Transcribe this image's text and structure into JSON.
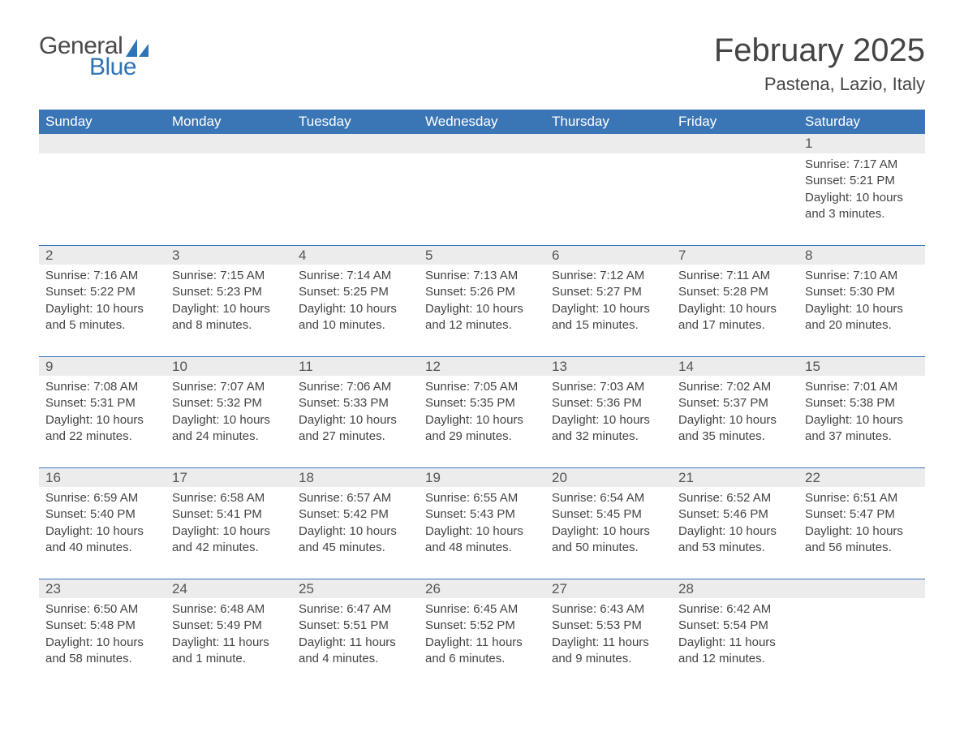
{
  "logo": {
    "text_general": "General",
    "text_blue": "Blue",
    "shape_color": "#2f74b5"
  },
  "title": "February 2025",
  "location": "Pastena, Lazio, Italy",
  "colors": {
    "header_bg": "#3a76b5",
    "header_text": "#ffffff",
    "daynum_bg": "#ececec",
    "daynum_border": "#3a76b5",
    "body_text": "#444444",
    "page_bg": "#ffffff"
  },
  "fonts": {
    "title_size_pt": 30,
    "location_size_pt": 17,
    "dayhead_size_pt": 13,
    "body_size_pt": 11
  },
  "day_headers": [
    "Sunday",
    "Monday",
    "Tuesday",
    "Wednesday",
    "Thursday",
    "Friday",
    "Saturday"
  ],
  "weeks": [
    [
      {
        "n": ""
      },
      {
        "n": ""
      },
      {
        "n": ""
      },
      {
        "n": ""
      },
      {
        "n": ""
      },
      {
        "n": ""
      },
      {
        "n": "1",
        "sr": "Sunrise: 7:17 AM",
        "ss": "Sunset: 5:21 PM",
        "dl": "Daylight: 10 hours and 3 minutes."
      }
    ],
    [
      {
        "n": "2",
        "sr": "Sunrise: 7:16 AM",
        "ss": "Sunset: 5:22 PM",
        "dl": "Daylight: 10 hours and 5 minutes."
      },
      {
        "n": "3",
        "sr": "Sunrise: 7:15 AM",
        "ss": "Sunset: 5:23 PM",
        "dl": "Daylight: 10 hours and 8 minutes."
      },
      {
        "n": "4",
        "sr": "Sunrise: 7:14 AM",
        "ss": "Sunset: 5:25 PM",
        "dl": "Daylight: 10 hours and 10 minutes."
      },
      {
        "n": "5",
        "sr": "Sunrise: 7:13 AM",
        "ss": "Sunset: 5:26 PM",
        "dl": "Daylight: 10 hours and 12 minutes."
      },
      {
        "n": "6",
        "sr": "Sunrise: 7:12 AM",
        "ss": "Sunset: 5:27 PM",
        "dl": "Daylight: 10 hours and 15 minutes."
      },
      {
        "n": "7",
        "sr": "Sunrise: 7:11 AM",
        "ss": "Sunset: 5:28 PM",
        "dl": "Daylight: 10 hours and 17 minutes."
      },
      {
        "n": "8",
        "sr": "Sunrise: 7:10 AM",
        "ss": "Sunset: 5:30 PM",
        "dl": "Daylight: 10 hours and 20 minutes."
      }
    ],
    [
      {
        "n": "9",
        "sr": "Sunrise: 7:08 AM",
        "ss": "Sunset: 5:31 PM",
        "dl": "Daylight: 10 hours and 22 minutes."
      },
      {
        "n": "10",
        "sr": "Sunrise: 7:07 AM",
        "ss": "Sunset: 5:32 PM",
        "dl": "Daylight: 10 hours and 24 minutes."
      },
      {
        "n": "11",
        "sr": "Sunrise: 7:06 AM",
        "ss": "Sunset: 5:33 PM",
        "dl": "Daylight: 10 hours and 27 minutes."
      },
      {
        "n": "12",
        "sr": "Sunrise: 7:05 AM",
        "ss": "Sunset: 5:35 PM",
        "dl": "Daylight: 10 hours and 29 minutes."
      },
      {
        "n": "13",
        "sr": "Sunrise: 7:03 AM",
        "ss": "Sunset: 5:36 PM",
        "dl": "Daylight: 10 hours and 32 minutes."
      },
      {
        "n": "14",
        "sr": "Sunrise: 7:02 AM",
        "ss": "Sunset: 5:37 PM",
        "dl": "Daylight: 10 hours and 35 minutes."
      },
      {
        "n": "15",
        "sr": "Sunrise: 7:01 AM",
        "ss": "Sunset: 5:38 PM",
        "dl": "Daylight: 10 hours and 37 minutes."
      }
    ],
    [
      {
        "n": "16",
        "sr": "Sunrise: 6:59 AM",
        "ss": "Sunset: 5:40 PM",
        "dl": "Daylight: 10 hours and 40 minutes."
      },
      {
        "n": "17",
        "sr": "Sunrise: 6:58 AM",
        "ss": "Sunset: 5:41 PM",
        "dl": "Daylight: 10 hours and 42 minutes."
      },
      {
        "n": "18",
        "sr": "Sunrise: 6:57 AM",
        "ss": "Sunset: 5:42 PM",
        "dl": "Daylight: 10 hours and 45 minutes."
      },
      {
        "n": "19",
        "sr": "Sunrise: 6:55 AM",
        "ss": "Sunset: 5:43 PM",
        "dl": "Daylight: 10 hours and 48 minutes."
      },
      {
        "n": "20",
        "sr": "Sunrise: 6:54 AM",
        "ss": "Sunset: 5:45 PM",
        "dl": "Daylight: 10 hours and 50 minutes."
      },
      {
        "n": "21",
        "sr": "Sunrise: 6:52 AM",
        "ss": "Sunset: 5:46 PM",
        "dl": "Daylight: 10 hours and 53 minutes."
      },
      {
        "n": "22",
        "sr": "Sunrise: 6:51 AM",
        "ss": "Sunset: 5:47 PM",
        "dl": "Daylight: 10 hours and 56 minutes."
      }
    ],
    [
      {
        "n": "23",
        "sr": "Sunrise: 6:50 AM",
        "ss": "Sunset: 5:48 PM",
        "dl": "Daylight: 10 hours and 58 minutes."
      },
      {
        "n": "24",
        "sr": "Sunrise: 6:48 AM",
        "ss": "Sunset: 5:49 PM",
        "dl": "Daylight: 11 hours and 1 minute."
      },
      {
        "n": "25",
        "sr": "Sunrise: 6:47 AM",
        "ss": "Sunset: 5:51 PM",
        "dl": "Daylight: 11 hours and 4 minutes."
      },
      {
        "n": "26",
        "sr": "Sunrise: 6:45 AM",
        "ss": "Sunset: 5:52 PM",
        "dl": "Daylight: 11 hours and 6 minutes."
      },
      {
        "n": "27",
        "sr": "Sunrise: 6:43 AM",
        "ss": "Sunset: 5:53 PM",
        "dl": "Daylight: 11 hours and 9 minutes."
      },
      {
        "n": "28",
        "sr": "Sunrise: 6:42 AM",
        "ss": "Sunset: 5:54 PM",
        "dl": "Daylight: 11 hours and 12 minutes."
      },
      {
        "n": ""
      }
    ]
  ]
}
